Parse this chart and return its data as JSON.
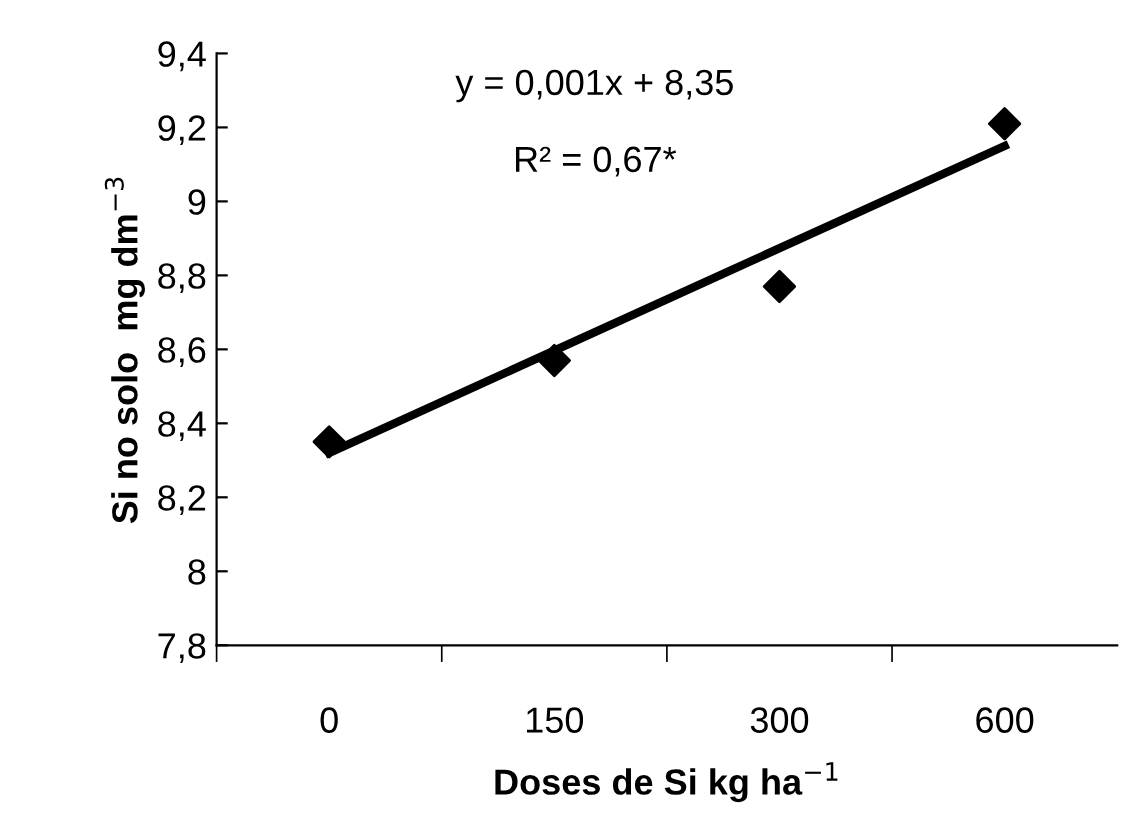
{
  "chart_data": {
    "type": "scatter",
    "xlabel": "Doses de Si kg ha$^{−1}$",
    "ylabel": "Si no solo  mg dm$^{−3}$",
    "categories": [
      "0",
      "150",
      "300",
      "600"
    ],
    "series": [
      {
        "color": "#000000",
        "marker": "diamond",
        "values": [
          8.35,
          8.57,
          8.77,
          9.21
        ]
      },
      {
        "type": "line",
        "color": "#000000",
        "marker": "none",
        "line_style": "solid",
        "x": [
          "0",
          "600"
        ],
        "values": [
          8.32,
          9.15
        ]
      }
    ],
    "ylim": [
      7.8,
      9.4
    ],
    "yticks": [
      {
        "value": 7.8,
        "label": "7,8"
      },
      {
        "value": 8,
        "label": "8"
      },
      {
        "value": 8.2,
        "label": "8,2"
      },
      {
        "value": 8.4,
        "label": "8,4"
      },
      {
        "value": 8.6,
        "label": "8,6"
      },
      {
        "value": 8.8,
        "label": "8,8"
      },
      {
        "value": 9,
        "label": "9"
      },
      {
        "value": 9.2,
        "label": "9,2"
      },
      {
        "value": 9.4,
        "label": "9,4"
      }
    ],
    "grid": false,
    "legend": false,
    "annotations": [
      "y = 0,001x + 8,35",
      "R² = 0,67*"
    ]
  }
}
